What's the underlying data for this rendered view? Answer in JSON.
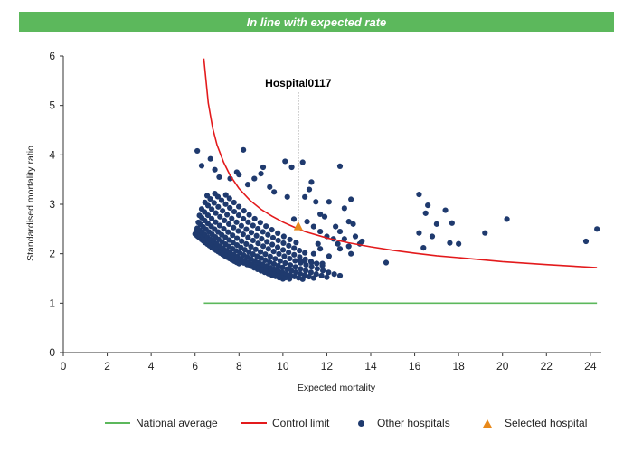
{
  "banner": {
    "title": "In line with expected rate"
  },
  "chart_data": {
    "type": "scatter",
    "xlabel": "Expected mortality",
    "ylabel": "Standardised mortality ratio",
    "xlim": [
      0,
      24.5
    ],
    "ylim": [
      0,
      6
    ],
    "xticks": [
      0,
      2,
      4,
      6,
      8,
      10,
      12,
      14,
      16,
      18,
      20,
      22,
      24
    ],
    "yticks": [
      0,
      1,
      2,
      3,
      4,
      5,
      6
    ],
    "grid": false,
    "legend_position": "bottom",
    "colors": {
      "national": "#5cb85c",
      "control": "#e31a1c",
      "other": "#1f3a6e",
      "selected": "#e8891b",
      "banner": "#5cb85c"
    },
    "national_average": {
      "name": "National average",
      "x": [
        6.4,
        24.3
      ],
      "y": [
        1,
        1
      ]
    },
    "control_limit": {
      "name": "Control limit",
      "x": [
        6.4,
        6.6,
        6.8,
        7.0,
        7.3,
        7.6,
        8.0,
        8.5,
        9.0,
        9.5,
        10.0,
        10.5,
        11.0,
        12.0,
        13.0,
        14.0,
        15.0,
        16.0,
        17.0,
        18.0,
        20.0,
        22.0,
        24.3
      ],
      "y": [
        5.95,
        5.05,
        4.55,
        4.2,
        3.85,
        3.58,
        3.32,
        3.08,
        2.9,
        2.76,
        2.64,
        2.54,
        2.45,
        2.32,
        2.22,
        2.14,
        2.07,
        2.01,
        1.96,
        1.92,
        1.84,
        1.78,
        1.72
      ]
    },
    "selected": {
      "name": "Selected hospital",
      "label": "Hospital0117",
      "x": 10.7,
      "y": 2.55
    },
    "other_hospitals": {
      "name": "Other hospitals",
      "points": [
        [
          6.1,
          4.08
        ],
        [
          6.3,
          3.78
        ],
        [
          6.7,
          3.92
        ],
        [
          6.9,
          3.7
        ],
        [
          7.1,
          3.55
        ],
        [
          7.6,
          3.52
        ],
        [
          7.9,
          3.65
        ],
        [
          8.0,
          3.6
        ],
        [
          8.2,
          4.1
        ],
        [
          8.4,
          3.4
        ],
        [
          8.7,
          3.52
        ],
        [
          9.0,
          3.62
        ],
        [
          9.1,
          3.75
        ],
        [
          9.4,
          3.35
        ],
        [
          9.6,
          3.25
        ],
        [
          10.1,
          3.87
        ],
        [
          10.4,
          3.75
        ],
        [
          10.2,
          3.15
        ],
        [
          10.9,
          3.85
        ],
        [
          11.3,
          3.45
        ],
        [
          11.5,
          3.05
        ],
        [
          11.0,
          3.15
        ],
        [
          11.2,
          3.3
        ],
        [
          12.6,
          3.77
        ],
        [
          12.8,
          2.92
        ],
        [
          13.1,
          3.1
        ],
        [
          13.0,
          2.65
        ],
        [
          13.2,
          2.6
        ],
        [
          12.1,
          3.05
        ],
        [
          11.9,
          2.75
        ],
        [
          11.7,
          2.8
        ],
        [
          12.4,
          2.55
        ],
        [
          12.6,
          2.45
        ],
        [
          12.0,
          2.35
        ],
        [
          12.8,
          2.3
        ],
        [
          13.0,
          2.15
        ],
        [
          12.5,
          2.2
        ],
        [
          11.7,
          2.1
        ],
        [
          11.4,
          2.0
        ],
        [
          12.1,
          1.95
        ],
        [
          11.8,
          1.8
        ],
        [
          11.0,
          1.85
        ],
        [
          11.3,
          1.82
        ],
        [
          10.8,
          1.85
        ],
        [
          12.6,
          2.1
        ],
        [
          13.5,
          2.2
        ],
        [
          13.3,
          2.35
        ],
        [
          13.6,
          2.25
        ],
        [
          13.1,
          2.0
        ],
        [
          14.7,
          1.82
        ],
        [
          16.2,
          3.2
        ],
        [
          16.5,
          2.82
        ],
        [
          16.6,
          2.98
        ],
        [
          17.4,
          2.88
        ],
        [
          17.0,
          2.6
        ],
        [
          16.2,
          2.42
        ],
        [
          16.4,
          2.12
        ],
        [
          16.8,
          2.35
        ],
        [
          17.7,
          2.62
        ],
        [
          17.6,
          2.22
        ],
        [
          18.0,
          2.2
        ],
        [
          19.2,
          2.42
        ],
        [
          20.2,
          2.7
        ],
        [
          23.8,
          2.25
        ],
        [
          24.3,
          2.5
        ],
        [
          11.7,
          2.45
        ],
        [
          12.3,
          2.3
        ],
        [
          11.1,
          2.65
        ],
        [
          11.4,
          2.55
        ],
        [
          10.5,
          2.7
        ],
        [
          11.6,
          2.2
        ]
      ],
      "curves": [
        {
          "k": 14.4,
          "x0": 6.0,
          "x1": 8.0,
          "n": 22
        },
        {
          "k": 14.9,
          "x0": 6.05,
          "x1": 10.0,
          "n": 28
        },
        {
          "k": 15.35,
          "x0": 6.1,
          "x1": 10.3,
          "n": 28
        },
        {
          "k": 16.2,
          "x0": 6.15,
          "x1": 10.9,
          "n": 30
        },
        {
          "k": 17.2,
          "x0": 6.2,
          "x1": 11.4,
          "n": 30
        },
        {
          "k": 18.3,
          "x0": 6.3,
          "x1": 12.0,
          "n": 28
        },
        {
          "k": 19.6,
          "x0": 6.45,
          "x1": 12.6,
          "n": 28
        },
        {
          "k": 20.8,
          "x0": 6.55,
          "x1": 11.8,
          "n": 24
        },
        {
          "k": 22.2,
          "x0": 6.9,
          "x1": 11.0,
          "n": 20
        },
        {
          "k": 23.6,
          "x0": 7.4,
          "x1": 10.6,
          "n": 14
        }
      ]
    },
    "legend": [
      "National average",
      "Control limit",
      "Other hospitals",
      "Selected hospital"
    ]
  }
}
